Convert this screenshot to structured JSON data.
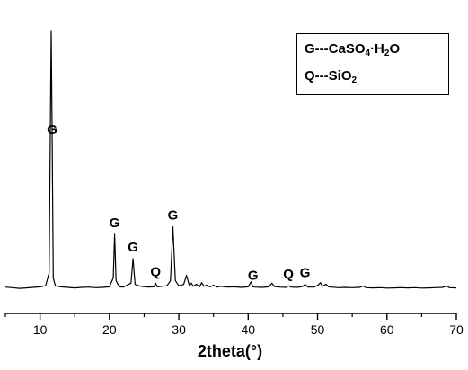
{
  "chart_data": {
    "type": "line",
    "title": "",
    "xlabel": "2theta(°)",
    "ylabel": "",
    "xlim": [
      5,
      70
    ],
    "ylim": [
      0,
      100
    ],
    "x_ticks": [
      10,
      20,
      30,
      40,
      50,
      60,
      70
    ],
    "y_axis_visible": false,
    "grid": false,
    "series": [
      {
        "x": [
          5.0,
          6.0,
          7.0,
          8.0,
          9.0,
          10.0,
          10.8,
          11.3,
          11.6,
          11.75,
          11.9,
          12.2,
          13.0,
          14.0,
          15.0,
          16.0,
          17.0,
          18.0,
          19.0,
          20.0,
          20.55,
          20.75,
          20.95,
          21.4,
          22.0,
          23.1,
          23.4,
          23.7,
          24.5,
          25.5,
          26.4,
          26.65,
          26.9,
          27.5,
          28.3,
          28.8,
          29.15,
          29.5,
          30.0,
          30.7,
          31.1,
          31.5,
          31.8,
          32.1,
          32.5,
          33.0,
          33.3,
          33.6,
          34.0,
          34.5,
          35.0,
          35.5,
          36.0,
          37.0,
          38.0,
          39.0,
          40.0,
          40.4,
          40.7,
          41.0,
          42.0,
          43.0,
          43.4,
          43.8,
          44.5,
          45.5,
          45.8,
          46.2,
          47.0,
          47.8,
          48.2,
          48.6,
          49.5,
          50.1,
          50.4,
          50.7,
          51.2,
          51.6,
          52.0,
          53.0,
          54.0,
          55.0,
          56.0,
          56.6,
          57.0,
          58.0,
          59.0,
          60.0,
          61.0,
          62.0,
          63.0,
          64.0,
          65.0,
          66.0,
          67.0,
          68.0,
          68.6,
          69.0,
          70.0
        ],
        "y": [
          2.5,
          2.3,
          2.0,
          2.2,
          2.4,
          2.6,
          3.0,
          8.0,
          100.0,
          58.0,
          6.0,
          3.0,
          2.6,
          2.4,
          2.2,
          2.4,
          2.5,
          2.3,
          2.4,
          2.6,
          6.0,
          22.6,
          5.0,
          2.6,
          2.5,
          4.0,
          13.3,
          3.5,
          2.8,
          2.5,
          2.6,
          4.0,
          2.6,
          2.8,
          3.0,
          5.0,
          25.4,
          5.0,
          3.0,
          3.5,
          7.0,
          3.2,
          4.0,
          2.8,
          3.6,
          2.6,
          4.2,
          2.8,
          3.2,
          2.6,
          3.2,
          2.5,
          2.8,
          2.5,
          2.6,
          2.4,
          2.6,
          4.5,
          2.6,
          2.5,
          2.4,
          2.6,
          4.0,
          2.7,
          2.5,
          2.4,
          3.0,
          2.5,
          2.4,
          2.7,
          3.5,
          2.5,
          2.5,
          3.3,
          4.2,
          2.8,
          3.6,
          2.6,
          2.5,
          2.3,
          2.4,
          2.3,
          2.4,
          2.9,
          2.3,
          2.2,
          2.3,
          2.1,
          2.2,
          2.3,
          2.2,
          2.3,
          2.1,
          2.2,
          2.3,
          2.4,
          2.9,
          2.3,
          2.2
        ]
      }
    ],
    "annotations": [
      {
        "text": "G",
        "x": 11.75
      },
      {
        "text": "G",
        "x": 20.75
      },
      {
        "text": "G",
        "x": 23.4
      },
      {
        "text": "Q",
        "x": 26.65
      },
      {
        "text": "G",
        "x": 29.15
      },
      {
        "text": "G",
        "x": 40.7
      },
      {
        "text": "Q",
        "x": 45.8
      },
      {
        "text": "G",
        "x": 48.2
      }
    ]
  },
  "legend": {
    "gypsum": {
      "prefix": "G---CaSO",
      "sub1": "4",
      "mid": "·H",
      "sub2": "2",
      "suffix": "O"
    },
    "quartz": {
      "prefix": "Q---SiO",
      "sub1": "2"
    }
  },
  "colors": {
    "line": "#000000",
    "background": "#ffffff"
  }
}
